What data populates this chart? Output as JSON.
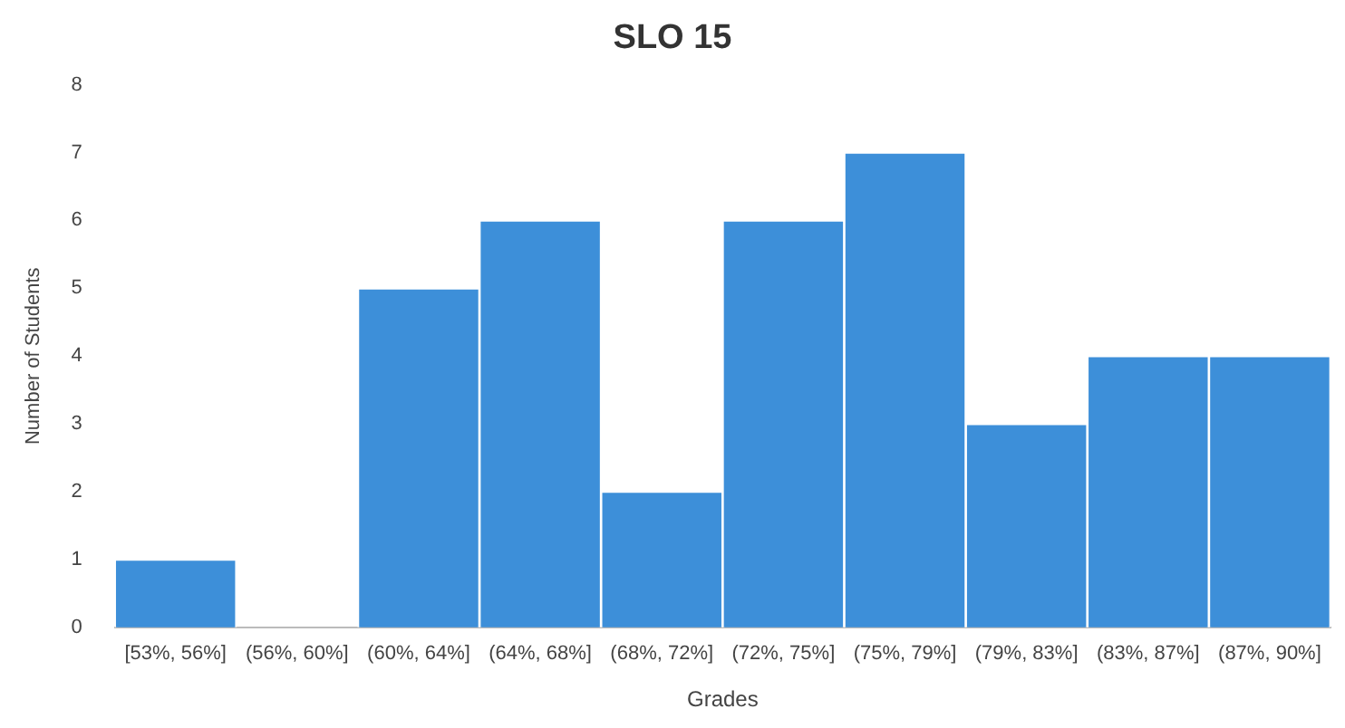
{
  "chart_data": {
    "type": "bar",
    "title": "SLO 15",
    "xlabel": "Grades",
    "ylabel": "Number of Students",
    "categories": [
      "[53%, 56%]",
      "(56%, 60%]",
      "(60%, 64%]",
      "(64%, 68%]",
      "(68%, 72%]",
      "(72%, 75%]",
      "(75%, 79%]",
      "(79%, 83%]",
      "(83%, 87%]",
      "(87%, 90%]"
    ],
    "values": [
      1,
      0,
      5,
      6,
      2,
      6,
      7,
      3,
      4,
      4
    ],
    "color": "#3d8fd9",
    "ylim": [
      0,
      8
    ],
    "yticks": [
      0,
      1,
      2,
      3,
      4,
      5,
      6,
      7,
      8
    ],
    "grid": false,
    "legend": false
  }
}
